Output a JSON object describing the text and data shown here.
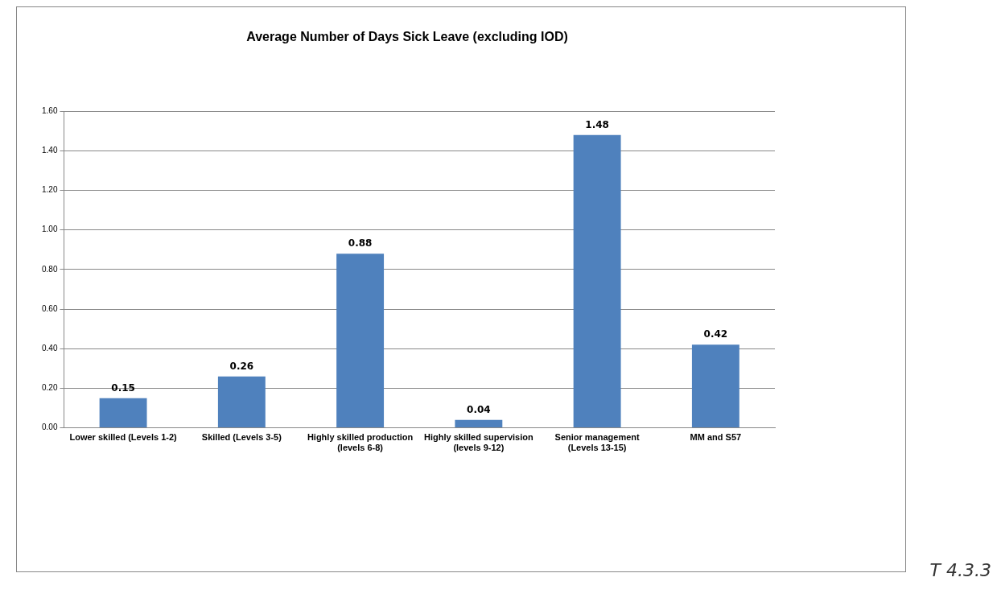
{
  "chart_data": {
    "type": "bar",
    "title": "Average Number of Days Sick Leave (excluding IOD)",
    "categories": [
      "Lower skilled (Levels 1-2)",
      "Skilled (Levels 3-5)",
      "Highly skilled production (levels 6-8)",
      "Highly skilled supervision (levels 9-12)",
      "Senior management (Levels 13-15)",
      "MM and S57"
    ],
    "values": [
      0.15,
      0.26,
      0.88,
      0.04,
      1.48,
      0.42
    ],
    "value_labels": [
      "0.15",
      "0.26",
      "0.88",
      "0.04",
      "1.48",
      "0.42"
    ],
    "color": "#4f81bd",
    "ylim": [
      0,
      1.6
    ],
    "yticks": [
      {
        "value": 0,
        "label": "0.00"
      },
      {
        "value": 0.2,
        "label": "0.20"
      },
      {
        "value": 0.4,
        "label": "0.40"
      },
      {
        "value": 0.6,
        "label": "0.60"
      },
      {
        "value": 0.8,
        "label": "0.80"
      },
      {
        "value": 1,
        "label": "1.00"
      },
      {
        "value": 1.2,
        "label": "1.20"
      },
      {
        "value": 1.4,
        "label": "1.40"
      },
      {
        "value": 1.6,
        "label": "1.60"
      }
    ],
    "grid": "y",
    "legend": false,
    "annotations": [
      "T 4.3.3"
    ]
  }
}
